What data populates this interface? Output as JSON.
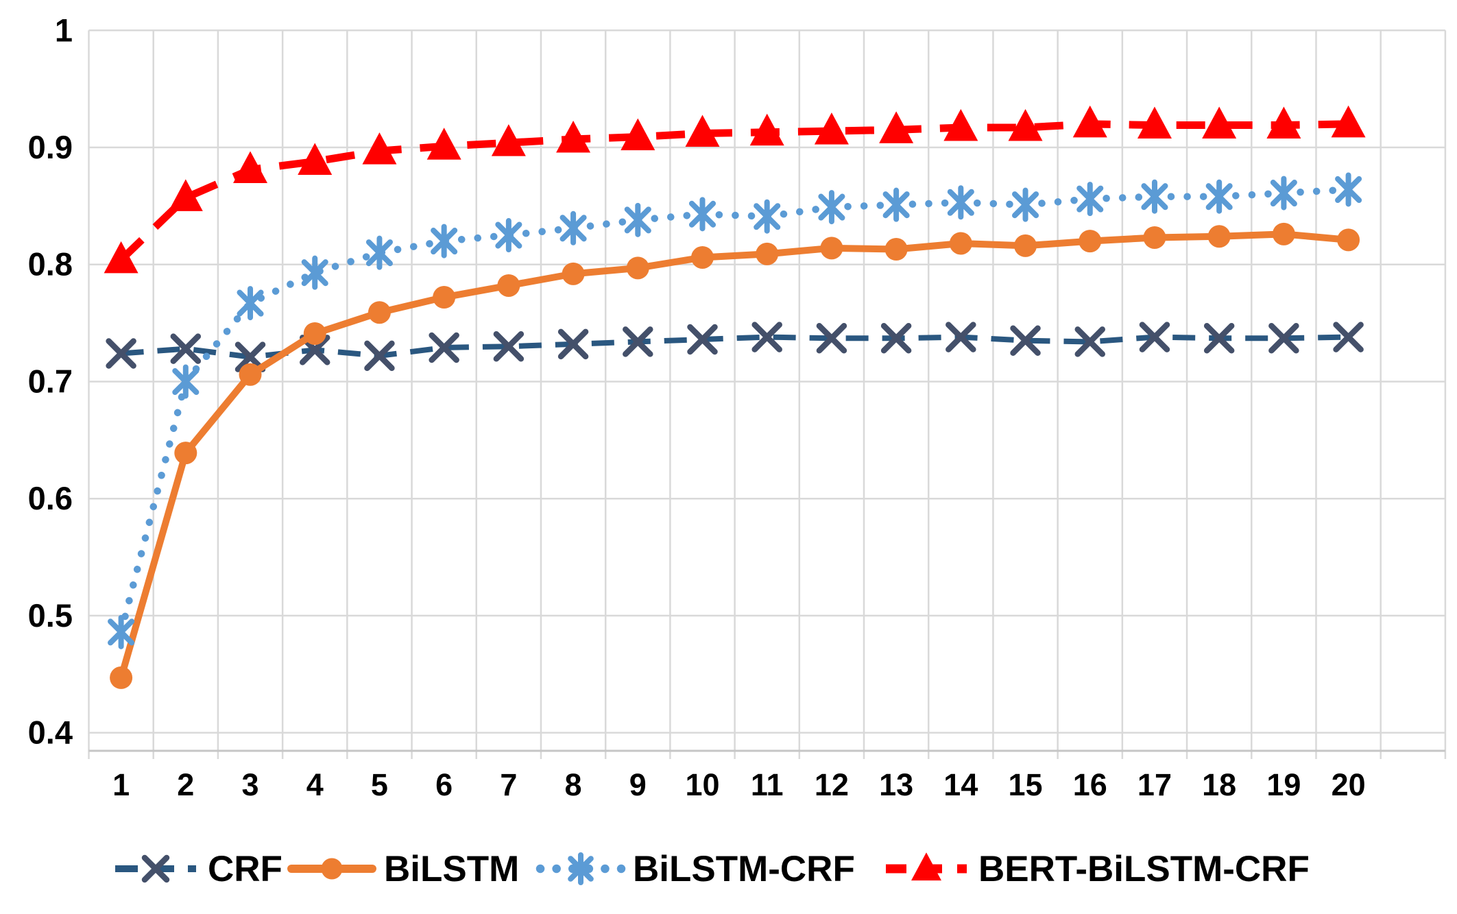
{
  "chart_data": {
    "type": "line",
    "title": "",
    "xlabel": "",
    "ylabel": "",
    "grid": true,
    "legend_position": "bottom",
    "x_categories": [
      "1",
      "2",
      "3",
      "4",
      "5",
      "6",
      "7",
      "8",
      "9",
      "10",
      "11",
      "12",
      "13",
      "14",
      "15",
      "16",
      "17",
      "18",
      "19",
      "20"
    ],
    "y_axis": {
      "min": 0.4,
      "max": 1.0,
      "tick_step": 0.1,
      "ticks": [
        {
          "value": 1.0,
          "label": "1"
        },
        {
          "value": 0.9,
          "label": "0.9"
        },
        {
          "value": 0.8,
          "label": "0.8"
        },
        {
          "value": 0.7,
          "label": "0.7"
        },
        {
          "value": 0.6,
          "label": "0.6"
        },
        {
          "value": 0.5,
          "label": "0.5"
        },
        {
          "value": 0.4,
          "label": "0.4"
        }
      ]
    },
    "colors": {
      "gridline": "#D9D9D9",
      "axis_line": "#C6C6C6",
      "crf_line": "#2A5780",
      "crf_marker": "#44506A",
      "bilstm": "#ED7D31",
      "bilstm_crf": "#5B9BD5",
      "bert_bilstm_crf": "#FF0000",
      "label_text": "#000000"
    },
    "series": [
      {
        "name": "CRF",
        "color": "#2A5780",
        "marker_color": "#44506A",
        "marker": "x",
        "line_style": "dashed",
        "values": [
          0.724,
          0.728,
          0.721,
          0.727,
          0.722,
          0.729,
          0.73,
          0.732,
          0.734,
          0.736,
          0.738,
          0.737,
          0.737,
          0.738,
          0.735,
          0.734,
          0.738,
          0.737,
          0.737,
          0.738
        ]
      },
      {
        "name": "BiLSTM",
        "color": "#ED7D31",
        "marker_color": "#ED7D31",
        "marker": "circle",
        "line_style": "solid",
        "values": [
          0.447,
          0.639,
          0.706,
          0.741,
          0.759,
          0.772,
          0.782,
          0.792,
          0.797,
          0.806,
          0.809,
          0.814,
          0.813,
          0.818,
          0.816,
          0.82,
          0.823,
          0.824,
          0.826,
          0.821
        ]
      },
      {
        "name": "BiLSTM-CRF",
        "color": "#5B9BD5",
        "marker_color": "#5B9BD5",
        "marker": "asterisk",
        "line_style": "dotted",
        "values": [
          0.486,
          0.7,
          0.767,
          0.793,
          0.81,
          0.82,
          0.825,
          0.831,
          0.838,
          0.843,
          0.841,
          0.849,
          0.851,
          0.853,
          0.851,
          0.856,
          0.858,
          0.858,
          0.861,
          0.864
        ]
      },
      {
        "name": "BERT-BiLSTM-CRF",
        "color": "#FF0000",
        "marker_color": "#FF0000",
        "marker": "triangle",
        "line_style": "dashed",
        "values": [
          0.804,
          0.857,
          0.881,
          0.888,
          0.897,
          0.901,
          0.904,
          0.907,
          0.909,
          0.912,
          0.913,
          0.914,
          0.915,
          0.917,
          0.917,
          0.92,
          0.919,
          0.919,
          0.919,
          0.92
        ]
      }
    ]
  }
}
